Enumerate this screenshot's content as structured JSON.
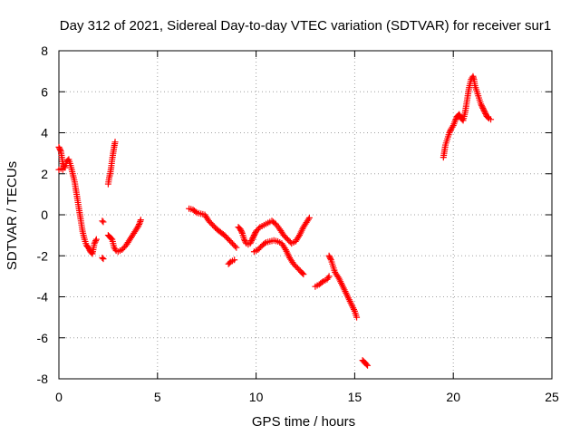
{
  "chart_data": {
    "type": "scatter",
    "title": "Day 312 of 2021, Sidereal Day-to-day VTEC variation (SDTVAR) for receiver sur1",
    "xlabel": "GPS time / hours",
    "ylabel": "SDTVAR / TECUs",
    "xlim": [
      0,
      25
    ],
    "ylim": [
      -8,
      8
    ],
    "xticks": [
      0,
      5,
      10,
      15,
      20,
      25
    ],
    "yticks": [
      -8,
      -6,
      -4,
      -2,
      0,
      2,
      4,
      6,
      8
    ],
    "grid": true,
    "marker": "+",
    "color": "#ff0000",
    "series": [
      {
        "name": "SDTVAR",
        "segments": [
          [
            [
              0.0,
              3.3
            ],
            [
              0.1,
              3.1
            ],
            [
              0.15,
              2.8
            ],
            [
              0.2,
              2.5
            ],
            [
              0.3,
              2.3
            ],
            [
              0.4,
              2.6
            ],
            [
              0.5,
              2.7
            ],
            [
              0.6,
              2.4
            ],
            [
              0.7,
              2.0
            ],
            [
              0.8,
              1.6
            ],
            [
              0.9,
              1.0
            ],
            [
              1.0,
              0.4
            ],
            [
              1.1,
              -0.2
            ],
            [
              1.2,
              -0.8
            ],
            [
              1.3,
              -1.2
            ],
            [
              1.4,
              -1.5
            ],
            [
              1.5,
              -1.6
            ],
            [
              1.6,
              -1.8
            ],
            [
              1.7,
              -1.9
            ],
            [
              1.8,
              -1.4
            ],
            [
              1.9,
              -1.2
            ]
          ],
          [
            [
              0.0,
              2.2
            ],
            [
              0.1,
              2.25
            ],
            [
              0.2,
              2.2
            ]
          ],
          [
            [
              2.2,
              -0.3
            ],
            [
              2.25,
              -0.35
            ]
          ],
          [
            [
              2.2,
              -2.1
            ],
            [
              2.25,
              -2.15
            ]
          ],
          [
            [
              2.5,
              1.5
            ],
            [
              2.55,
              1.8
            ],
            [
              2.6,
              2.0
            ],
            [
              2.65,
              2.3
            ],
            [
              2.7,
              2.7
            ],
            [
              2.75,
              3.0
            ],
            [
              2.8,
              3.3
            ],
            [
              2.85,
              3.55
            ]
          ],
          [
            [
              2.5,
              -1.0
            ],
            [
              2.6,
              -1.1
            ],
            [
              2.7,
              -1.2
            ],
            [
              2.8,
              -1.6
            ],
            [
              2.9,
              -1.75
            ],
            [
              3.0,
              -1.8
            ],
            [
              3.2,
              -1.7
            ],
            [
              3.4,
              -1.5
            ],
            [
              3.6,
              -1.2
            ],
            [
              3.8,
              -0.9
            ],
            [
              4.0,
              -0.6
            ],
            [
              4.1,
              -0.4
            ],
            [
              4.15,
              -0.25
            ]
          ],
          [
            [
              6.6,
              0.3
            ],
            [
              6.8,
              0.25
            ],
            [
              7.0,
              0.1
            ],
            [
              7.2,
              0.05
            ],
            [
              7.4,
              0.0
            ],
            [
              7.6,
              -0.3
            ],
            [
              7.8,
              -0.5
            ],
            [
              8.0,
              -0.7
            ],
            [
              8.2,
              -0.85
            ],
            [
              8.4,
              -1.0
            ],
            [
              8.6,
              -1.2
            ],
            [
              8.8,
              -1.4
            ],
            [
              9.0,
              -1.6
            ]
          ],
          [
            [
              8.6,
              -2.4
            ],
            [
              8.7,
              -2.3
            ],
            [
              8.8,
              -2.25
            ],
            [
              8.9,
              -2.2
            ]
          ],
          [
            [
              9.1,
              -0.6
            ],
            [
              9.2,
              -0.7
            ],
            [
              9.3,
              -0.9
            ],
            [
              9.4,
              -1.2
            ],
            [
              9.5,
              -1.4
            ],
            [
              9.6,
              -1.45
            ],
            [
              9.7,
              -1.4
            ],
            [
              9.8,
              -1.2
            ],
            [
              9.9,
              -1.0
            ],
            [
              10.0,
              -0.8
            ],
            [
              10.2,
              -0.6
            ],
            [
              10.4,
              -0.5
            ],
            [
              10.6,
              -0.4
            ],
            [
              10.8,
              -0.3
            ],
            [
              11.0,
              -0.45
            ],
            [
              11.2,
              -0.7
            ],
            [
              11.4,
              -1.0
            ],
            [
              11.6,
              -1.2
            ],
            [
              11.8,
              -1.4
            ],
            [
              12.0,
              -1.3
            ],
            [
              12.2,
              -1.0
            ],
            [
              12.4,
              -0.6
            ],
            [
              12.6,
              -0.3
            ],
            [
              12.7,
              -0.15
            ]
          ],
          [
            [
              9.9,
              -1.8
            ],
            [
              10.1,
              -1.7
            ],
            [
              10.3,
              -1.5
            ],
            [
              10.5,
              -1.35
            ],
            [
              10.7,
              -1.3
            ],
            [
              10.9,
              -1.25
            ],
            [
              11.1,
              -1.3
            ],
            [
              11.3,
              -1.4
            ],
            [
              11.5,
              -1.7
            ],
            [
              11.7,
              -2.1
            ],
            [
              11.9,
              -2.4
            ],
            [
              12.1,
              -2.6
            ],
            [
              12.3,
              -2.8
            ],
            [
              12.4,
              -2.9
            ]
          ],
          [
            [
              13.0,
              -3.5
            ],
            [
              13.2,
              -3.4
            ],
            [
              13.4,
              -3.25
            ],
            [
              13.6,
              -3.15
            ],
            [
              13.7,
              -3.0
            ]
          ],
          [
            [
              13.7,
              -2.0
            ],
            [
              13.8,
              -2.2
            ],
            [
              13.9,
              -2.5
            ],
            [
              14.0,
              -2.8
            ],
            [
              14.2,
              -3.1
            ],
            [
              14.4,
              -3.5
            ],
            [
              14.6,
              -3.9
            ],
            [
              14.8,
              -4.3
            ],
            [
              15.0,
              -4.7
            ],
            [
              15.1,
              -5.0
            ]
          ],
          [
            [
              15.4,
              -7.1
            ],
            [
              15.5,
              -7.2
            ],
            [
              15.6,
              -7.3
            ],
            [
              15.65,
              -7.35
            ]
          ],
          [
            [
              19.5,
              2.8
            ],
            [
              19.55,
              3.1
            ],
            [
              19.6,
              3.4
            ],
            [
              19.7,
              3.7
            ],
            [
              19.8,
              4.0
            ],
            [
              19.9,
              4.2
            ],
            [
              20.0,
              4.35
            ],
            [
              20.1,
              4.6
            ],
            [
              20.2,
              4.8
            ],
            [
              20.3,
              4.9
            ],
            [
              20.4,
              4.7
            ],
            [
              20.5,
              4.6
            ],
            [
              20.6,
              5.0
            ],
            [
              20.7,
              5.6
            ],
            [
              20.8,
              6.2
            ],
            [
              20.9,
              6.6
            ],
            [
              21.0,
              6.75
            ],
            [
              21.05,
              6.6
            ],
            [
              21.1,
              6.3
            ],
            [
              21.2,
              6.0
            ],
            [
              21.3,
              5.7
            ],
            [
              21.4,
              5.4
            ],
            [
              21.5,
              5.2
            ],
            [
              21.6,
              5.0
            ],
            [
              21.7,
              4.8
            ],
            [
              21.8,
              4.7
            ],
            [
              21.9,
              4.65
            ]
          ]
        ]
      }
    ]
  }
}
